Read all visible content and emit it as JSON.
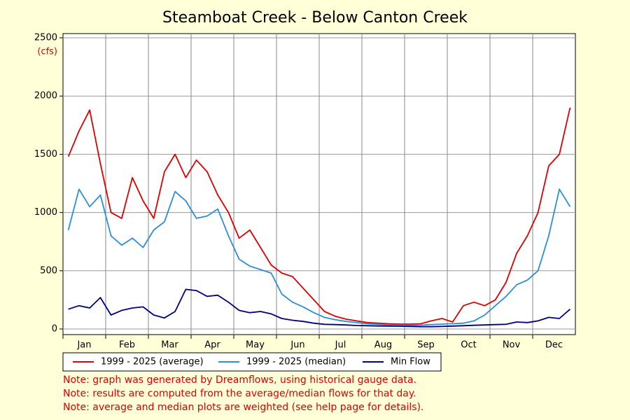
{
  "chart_data": {
    "type": "line",
    "title": "Steamboat Creek - Below Canton Creek",
    "y_unit": "(cfs)",
    "categories": [
      "Jan",
      null,
      null,
      null,
      "Feb",
      null,
      null,
      null,
      "Mar",
      null,
      null,
      null,
      "Apr",
      null,
      null,
      null,
      "May",
      null,
      null,
      null,
      "Jun",
      null,
      null,
      null,
      "Jul",
      null,
      null,
      null,
      "Aug",
      null,
      null,
      null,
      "Sep",
      null,
      null,
      null,
      "Oct",
      null,
      null,
      null,
      "Nov",
      null,
      null,
      null,
      "Dec",
      null,
      null,
      null
    ],
    "series": [
      {
        "name": "1999 - 2025 (average)",
        "color": "#dd0000",
        "values": [
          1480,
          1700,
          1880,
          1420,
          1000,
          950,
          1300,
          1100,
          950,
          1350,
          1500,
          1300,
          1450,
          1350,
          1150,
          1000,
          780,
          850,
          700,
          550,
          480,
          450,
          350,
          250,
          150,
          110,
          85,
          70,
          55,
          50,
          45,
          42,
          42,
          45,
          70,
          90,
          60,
          200,
          230,
          200,
          250,
          400,
          650,
          800,
          1000,
          1400,
          1500,
          1900
        ]
      },
      {
        "name": "1999 - 2025 (median)",
        "color": "#2a8fd8",
        "values": [
          850,
          1200,
          1050,
          1150,
          800,
          720,
          780,
          700,
          850,
          920,
          1180,
          1100,
          950,
          970,
          1030,
          800,
          600,
          540,
          510,
          480,
          300,
          230,
          190,
          140,
          100,
          80,
          65,
          55,
          45,
          40,
          35,
          33,
          32,
          33,
          38,
          42,
          45,
          50,
          70,
          120,
          200,
          280,
          380,
          420,
          500,
          800,
          1200,
          1050
        ]
      },
      {
        "name": "Min Flow",
        "color": "#000080",
        "values": [
          170,
          200,
          180,
          270,
          120,
          160,
          180,
          190,
          120,
          95,
          150,
          340,
          330,
          280,
          290,
          230,
          160,
          140,
          150,
          130,
          90,
          75,
          65,
          50,
          40,
          38,
          35,
          30,
          28,
          26,
          25,
          24,
          22,
          20,
          20,
          22,
          25,
          28,
          32,
          35,
          38,
          40,
          60,
          55,
          70,
          100,
          90,
          170
        ]
      }
    ],
    "ylim": [
      0,
      2500
    ],
    "yticks": [
      0,
      500,
      1000,
      1500,
      2000,
      2500
    ],
    "grid": true,
    "legend": "bottom",
    "notes": [
      "Note: graph was generated by Dreamflows, using historical gauge data.",
      "Note: results are computed from the average/median flows for that day.",
      "Note: average and median plots are weighted (see help page for details)."
    ]
  }
}
